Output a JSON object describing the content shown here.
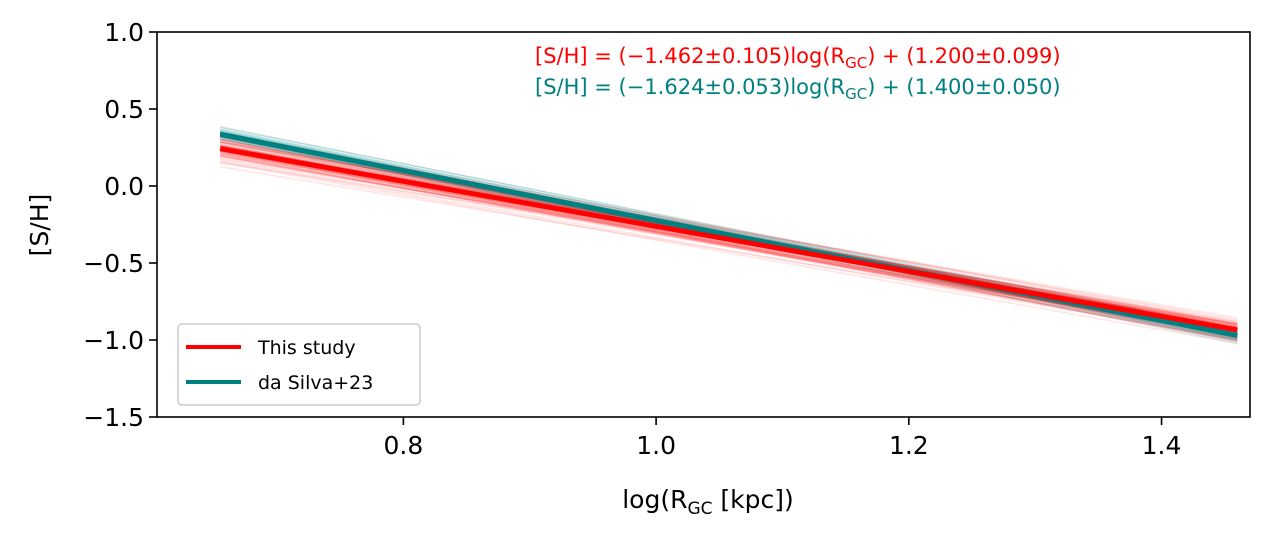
{
  "chart_data": {
    "type": "line",
    "xlabel_main": "log(R",
    "xlabel_sub": "GC",
    "xlabel_tail": " [kpc])",
    "ylabel": "[S/H]",
    "xlim": [
      0.605,
      1.47
    ],
    "ylim": [
      -1.5,
      1.0
    ],
    "xticks": [
      0.8,
      1.0,
      1.2,
      1.4
    ],
    "xtick_labels": [
      "0.8",
      "1.0",
      "1.2",
      "1.4"
    ],
    "yticks": [
      1.0,
      0.5,
      0.0,
      -0.5,
      -1.0,
      -1.5
    ],
    "ytick_labels": [
      "1.0",
      "0.5",
      "0.0",
      "−0.5",
      "−1.0",
      "−1.5"
    ],
    "x_range": [
      0.655,
      1.46
    ],
    "series": [
      {
        "name": "This study",
        "color": "#ff0000",
        "slope": -1.462,
        "slope_err": 0.105,
        "intercept": 1.2,
        "intercept_err": 0.099,
        "equation": {
          "prefix": "[S/H] = (−1.462±0.105)log(R",
          "sub": "GC",
          "suffix": ") + (1.200±0.099)"
        }
      },
      {
        "name": "da Silva+23",
        "color": "#008080",
        "slope": -1.624,
        "slope_err": 0.053,
        "intercept": 1.4,
        "intercept_err": 0.05,
        "equation": {
          "prefix": "[S/H] = (−1.624±0.053)log(R",
          "sub": "GC",
          "suffix": ") + (1.400±0.050)"
        }
      }
    ],
    "legend_position": "lower-left"
  }
}
